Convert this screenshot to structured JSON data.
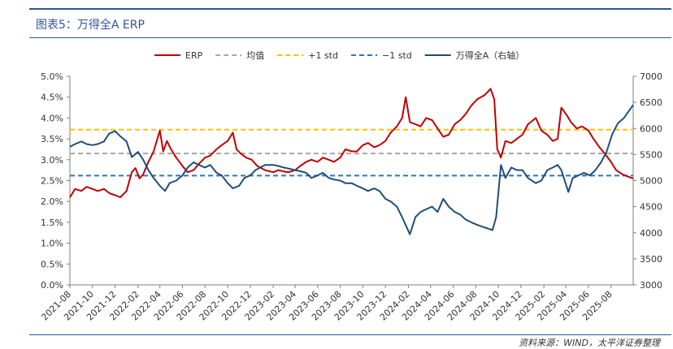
{
  "header": {
    "title": "图表5：万得全A ERP",
    "source": "资料来源：WIND，太平洋证券整理"
  },
  "chart_data": {
    "type": "line",
    "title": "图表5：万得全A ERP",
    "legend": {
      "placement": "top-center",
      "entries": [
        "ERP",
        "均值",
        "+1 std",
        "−1 std",
        "万得全A（右轴）"
      ]
    },
    "x_tick_labels": [
      "2021-08",
      "2021-10",
      "2021-12",
      "2022-02",
      "2022-04",
      "2022-06",
      "2022-08",
      "2022-10",
      "2022-12",
      "2023-02",
      "2023-04",
      "2023-06",
      "2023-08",
      "2023-10",
      "2023-12",
      "2024-02",
      "2024-04",
      "2024-06",
      "2024-08",
      "2024-10",
      "2024-12",
      "2025-02",
      "2025-04",
      "2025-06",
      "2025-08"
    ],
    "x_range": [
      "2021-08-01",
      "2025-09-30"
    ],
    "y_left": {
      "ylim": [
        0.0,
        5.0
      ],
      "ticks": [
        "0.0%",
        "0.5%",
        "1.0%",
        "1.5%",
        "2.0%",
        "2.5%",
        "3.0%",
        "3.5%",
        "4.0%",
        "4.5%",
        "5.0%"
      ]
    },
    "y_right": {
      "ylim": [
        3000,
        7000
      ],
      "ticks": [
        "3000",
        "3500",
        "4000",
        "4500",
        "5000",
        "5500",
        "6000",
        "6500",
        "7000"
      ]
    },
    "reference_lines": [
      {
        "name": "均值",
        "value": 3.15,
        "axis": "left",
        "style": "dashed",
        "color": "#a6a6a6"
      },
      {
        "name": "+1 std",
        "value": 3.72,
        "axis": "left",
        "style": "dashed",
        "color": "#ffc000"
      },
      {
        "name": "−1 std",
        "value": 2.62,
        "axis": "left",
        "style": "dashed",
        "color": "#2e75b6"
      }
    ],
    "series": [
      {
        "name": "ERP",
        "axis": "left",
        "color": "#c00000",
        "points": [
          [
            "2021-08-01",
            2.1
          ],
          [
            "2021-08-15",
            2.3
          ],
          [
            "2021-09-01",
            2.25
          ],
          [
            "2021-09-15",
            2.35
          ],
          [
            "2021-10-01",
            2.3
          ],
          [
            "2021-10-15",
            2.25
          ],
          [
            "2021-11-01",
            2.3
          ],
          [
            "2021-11-15",
            2.2
          ],
          [
            "2021-12-01",
            2.15
          ],
          [
            "2021-12-15",
            2.1
          ],
          [
            "2022-01-01",
            2.25
          ],
          [
            "2022-01-15",
            2.7
          ],
          [
            "2022-01-25",
            2.8
          ],
          [
            "2022-02-05",
            2.55
          ],
          [
            "2022-02-15",
            2.65
          ],
          [
            "2022-03-01",
            2.95
          ],
          [
            "2022-03-15",
            3.2
          ],
          [
            "2022-04-01",
            3.7
          ],
          [
            "2022-04-10",
            3.2
          ],
          [
            "2022-04-20",
            3.45
          ],
          [
            "2022-05-01",
            3.25
          ],
          [
            "2022-05-15",
            3.05
          ],
          [
            "2022-06-01",
            2.85
          ],
          [
            "2022-06-15",
            2.7
          ],
          [
            "2022-07-01",
            2.75
          ],
          [
            "2022-07-15",
            2.9
          ],
          [
            "2022-08-01",
            3.05
          ],
          [
            "2022-08-15",
            3.1
          ],
          [
            "2022-09-01",
            3.25
          ],
          [
            "2022-09-15",
            3.35
          ],
          [
            "2022-10-01",
            3.45
          ],
          [
            "2022-10-15",
            3.65
          ],
          [
            "2022-10-25",
            3.25
          ],
          [
            "2022-11-05",
            3.15
          ],
          [
            "2022-11-20",
            3.05
          ],
          [
            "2022-12-05",
            3.0
          ],
          [
            "2022-12-20",
            2.85
          ],
          [
            "2023-01-10",
            2.75
          ],
          [
            "2023-02-01",
            2.7
          ],
          [
            "2023-02-15",
            2.75
          ],
          [
            "2023-03-01",
            2.72
          ],
          [
            "2023-03-15",
            2.7
          ],
          [
            "2023-04-01",
            2.75
          ],
          [
            "2023-04-15",
            2.85
          ],
          [
            "2023-05-01",
            2.95
          ],
          [
            "2023-05-15",
            3.0
          ],
          [
            "2023-06-01",
            2.95
          ],
          [
            "2023-06-15",
            3.05
          ],
          [
            "2023-07-01",
            3.0
          ],
          [
            "2023-07-15",
            2.95
          ],
          [
            "2023-08-01",
            3.05
          ],
          [
            "2023-08-15",
            3.25
          ],
          [
            "2023-09-01",
            3.2
          ],
          [
            "2023-09-15",
            3.2
          ],
          [
            "2023-10-01",
            3.35
          ],
          [
            "2023-10-15",
            3.4
          ],
          [
            "2023-11-01",
            3.3
          ],
          [
            "2023-11-15",
            3.35
          ],
          [
            "2023-12-01",
            3.45
          ],
          [
            "2023-12-15",
            3.65
          ],
          [
            "2024-01-01",
            3.8
          ],
          [
            "2024-01-15",
            4.0
          ],
          [
            "2024-01-25",
            4.5
          ],
          [
            "2024-02-05",
            3.9
          ],
          [
            "2024-02-20",
            3.85
          ],
          [
            "2024-03-05",
            3.8
          ],
          [
            "2024-03-20",
            4.0
          ],
          [
            "2024-04-05",
            3.95
          ],
          [
            "2024-04-20",
            3.75
          ],
          [
            "2024-05-05",
            3.55
          ],
          [
            "2024-05-20",
            3.6
          ],
          [
            "2024-06-05",
            3.85
          ],
          [
            "2024-06-20",
            3.95
          ],
          [
            "2024-07-05",
            4.1
          ],
          [
            "2024-07-20",
            4.3
          ],
          [
            "2024-08-05",
            4.45
          ],
          [
            "2024-08-25",
            4.55
          ],
          [
            "2024-09-10",
            4.7
          ],
          [
            "2024-09-20",
            4.45
          ],
          [
            "2024-09-28",
            3.25
          ],
          [
            "2024-10-08",
            3.05
          ],
          [
            "2024-10-20",
            3.45
          ],
          [
            "2024-11-05",
            3.4
          ],
          [
            "2024-11-20",
            3.5
          ],
          [
            "2024-12-05",
            3.6
          ],
          [
            "2024-12-20",
            3.85
          ],
          [
            "2025-01-10",
            4.0
          ],
          [
            "2025-01-25",
            3.7
          ],
          [
            "2025-02-10",
            3.6
          ],
          [
            "2025-02-25",
            3.45
          ],
          [
            "2025-03-10",
            3.5
          ],
          [
            "2025-03-20",
            4.25
          ],
          [
            "2025-04-05",
            4.05
          ],
          [
            "2025-04-15",
            3.9
          ],
          [
            "2025-05-01",
            3.75
          ],
          [
            "2025-05-15",
            3.8
          ],
          [
            "2025-06-01",
            3.7
          ],
          [
            "2025-06-15",
            3.5
          ],
          [
            "2025-07-01",
            3.3
          ],
          [
            "2025-07-15",
            3.15
          ],
          [
            "2025-08-01",
            2.95
          ],
          [
            "2025-08-15",
            2.75
          ],
          [
            "2025-09-01",
            2.65
          ],
          [
            "2025-09-15",
            2.6
          ],
          [
            "2025-09-30",
            2.55
          ]
        ]
      },
      {
        "name": "万得全A（右轴）",
        "axis": "right",
        "color": "#1f4e79",
        "points": [
          [
            "2021-08-01",
            5650
          ],
          [
            "2021-08-15",
            5700
          ],
          [
            "2021-09-01",
            5750
          ],
          [
            "2021-09-15",
            5700
          ],
          [
            "2021-10-01",
            5680
          ],
          [
            "2021-10-15",
            5700
          ],
          [
            "2021-11-01",
            5750
          ],
          [
            "2021-11-15",
            5900
          ],
          [
            "2021-12-01",
            5950
          ],
          [
            "2021-12-15",
            5850
          ],
          [
            "2022-01-01",
            5750
          ],
          [
            "2022-01-15",
            5450
          ],
          [
            "2022-02-01",
            5550
          ],
          [
            "2022-02-15",
            5400
          ],
          [
            "2022-03-01",
            5200
          ],
          [
            "2022-03-15",
            5050
          ],
          [
            "2022-04-01",
            4900
          ],
          [
            "2022-04-15",
            4800
          ],
          [
            "2022-04-27",
            4950
          ],
          [
            "2022-05-15",
            5000
          ],
          [
            "2022-06-01",
            5100
          ],
          [
            "2022-06-15",
            5250
          ],
          [
            "2022-07-01",
            5350
          ],
          [
            "2022-07-15",
            5300
          ],
          [
            "2022-08-01",
            5250
          ],
          [
            "2022-08-15",
            5300
          ],
          [
            "2022-09-01",
            5150
          ],
          [
            "2022-09-15",
            5100
          ],
          [
            "2022-10-01",
            4950
          ],
          [
            "2022-10-15",
            4850
          ],
          [
            "2022-11-01",
            4900
          ],
          [
            "2022-11-15",
            5050
          ],
          [
            "2022-12-01",
            5100
          ],
          [
            "2022-12-15",
            5200
          ],
          [
            "2023-01-10",
            5300
          ],
          [
            "2023-02-01",
            5300
          ],
          [
            "2023-02-15",
            5280
          ],
          [
            "2023-03-01",
            5250
          ],
          [
            "2023-03-15",
            5230
          ],
          [
            "2023-04-01",
            5200
          ],
          [
            "2023-04-15",
            5180
          ],
          [
            "2023-05-01",
            5150
          ],
          [
            "2023-05-15",
            5050
          ],
          [
            "2023-06-01",
            5100
          ],
          [
            "2023-06-15",
            5150
          ],
          [
            "2023-07-01",
            5050
          ],
          [
            "2023-07-15",
            5020
          ],
          [
            "2023-08-01",
            5000
          ],
          [
            "2023-08-15",
            4950
          ],
          [
            "2023-09-01",
            4950
          ],
          [
            "2023-09-15",
            4900
          ],
          [
            "2023-10-01",
            4850
          ],
          [
            "2023-10-15",
            4800
          ],
          [
            "2023-11-01",
            4850
          ],
          [
            "2023-11-15",
            4800
          ],
          [
            "2023-12-01",
            4650
          ],
          [
            "2023-12-15",
            4600
          ],
          [
            "2024-01-01",
            4500
          ],
          [
            "2024-01-15",
            4300
          ],
          [
            "2024-02-05",
            3970
          ],
          [
            "2024-02-20",
            4300
          ],
          [
            "2024-03-05",
            4400
          ],
          [
            "2024-03-20",
            4450
          ],
          [
            "2024-04-05",
            4500
          ],
          [
            "2024-04-20",
            4400
          ],
          [
            "2024-05-05",
            4650
          ],
          [
            "2024-05-20",
            4500
          ],
          [
            "2024-06-05",
            4400
          ],
          [
            "2024-06-20",
            4350
          ],
          [
            "2024-07-05",
            4250
          ],
          [
            "2024-07-20",
            4200
          ],
          [
            "2024-08-05",
            4150
          ],
          [
            "2024-08-25",
            4100
          ],
          [
            "2024-09-15",
            4050
          ],
          [
            "2024-09-25",
            4300
          ],
          [
            "2024-10-08",
            5300
          ],
          [
            "2024-10-20",
            5050
          ],
          [
            "2024-11-05",
            5250
          ],
          [
            "2024-11-20",
            5200
          ],
          [
            "2024-12-05",
            5200
          ],
          [
            "2024-12-20",
            5050
          ],
          [
            "2025-01-10",
            4950
          ],
          [
            "2025-01-25",
            5000
          ],
          [
            "2025-02-10",
            5200
          ],
          [
            "2025-02-25",
            5250
          ],
          [
            "2025-03-10",
            5300
          ],
          [
            "2025-03-20",
            5200
          ],
          [
            "2025-04-08",
            4780
          ],
          [
            "2025-04-20",
            5050
          ],
          [
            "2025-05-05",
            5100
          ],
          [
            "2025-05-20",
            5150
          ],
          [
            "2025-06-05",
            5100
          ],
          [
            "2025-06-20",
            5200
          ],
          [
            "2025-07-05",
            5350
          ],
          [
            "2025-07-20",
            5550
          ],
          [
            "2025-08-05",
            5900
          ],
          [
            "2025-08-20",
            6100
          ],
          [
            "2025-09-05",
            6200
          ],
          [
            "2025-09-20",
            6350
          ],
          [
            "2025-09-30",
            6450
          ]
        ]
      }
    ],
    "grid": false
  }
}
